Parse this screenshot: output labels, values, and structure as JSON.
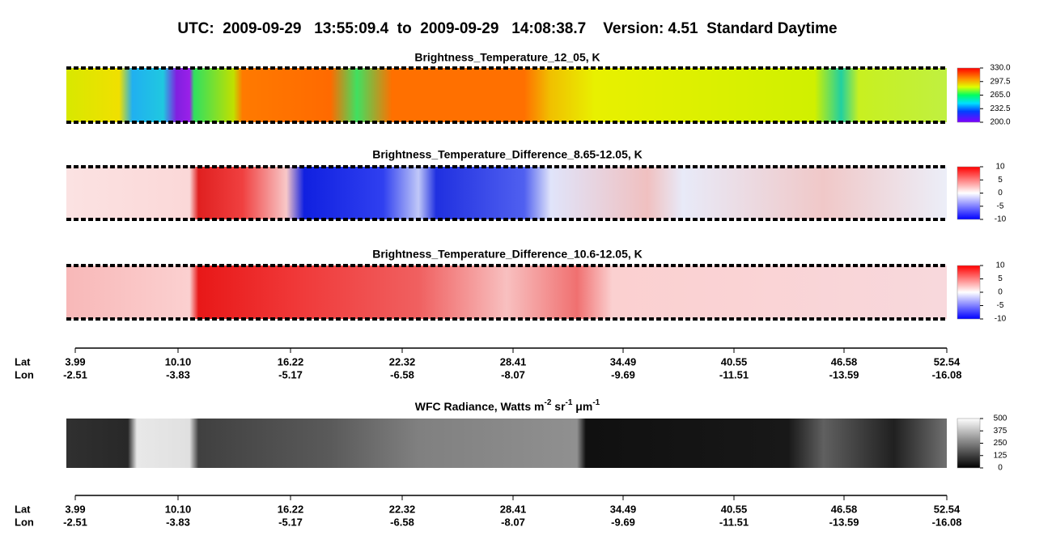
{
  "header": {
    "title": "UTC:  2009-09-29   13:55:09.4  to  2009-09-29   14:08:38.7    Version: 4.51  Standard Daytime"
  },
  "panels": [
    {
      "title": "Brightness_Temperature_12_05, K",
      "colorbar": {
        "range": [
          200,
          330
        ],
        "ticks": [
          {
            "value": 330,
            "label": "330.0"
          },
          {
            "value": 297.5,
            "label": "297.5"
          },
          {
            "value": 265,
            "label": "265.0"
          },
          {
            "value": 232.5,
            "label": "232.5"
          },
          {
            "value": 200,
            "label": "200.0"
          }
        ]
      }
    },
    {
      "title": "Brightness_Temperature_Difference_8.65-12.05, K",
      "colorbar": {
        "range": [
          -10,
          10
        ],
        "ticks": [
          10,
          5,
          0,
          -5,
          -10
        ]
      }
    },
    {
      "title": "Brightness_Temperature_Difference_10.6-12.05, K",
      "colorbar": {
        "range": [
          -10,
          10
        ],
        "ticks": [
          10,
          5,
          0,
          -5,
          -10
        ]
      }
    },
    {
      "title": [
        "WFC Radiance, Watts m",
        "-2",
        " sr",
        "-1",
        " μm",
        "-1"
      ],
      "colorbar": {
        "range": [
          0,
          500
        ],
        "ticks": [
          500,
          375,
          250,
          125,
          0
        ]
      }
    }
  ],
  "axes": [
    {
      "lat_label": "Lat",
      "lon_label": "Lon",
      "lat": [
        "3.99",
        "10.10",
        "16.22",
        "22.32",
        "28.41",
        "34.49",
        "40.55",
        "46.58",
        "52.54"
      ],
      "lon": [
        "-2.51",
        "-3.83",
        "-5.17",
        "-6.58",
        "-8.07",
        "-9.69",
        "-11.51",
        "-13.59",
        "-16.08"
      ]
    },
    {
      "lat_label": "Lat",
      "lon_label": "Lon",
      "lat": [
        "3.99",
        "10.10",
        "16.22",
        "22.32",
        "28.41",
        "34.49",
        "40.55",
        "46.58",
        "52.54"
      ],
      "lon": [
        "-2.51",
        "-3.83",
        "-5.17",
        "-6.58",
        "-8.07",
        "-9.69",
        "-11.51",
        "-13.59",
        "-16.08"
      ]
    }
  ]
}
